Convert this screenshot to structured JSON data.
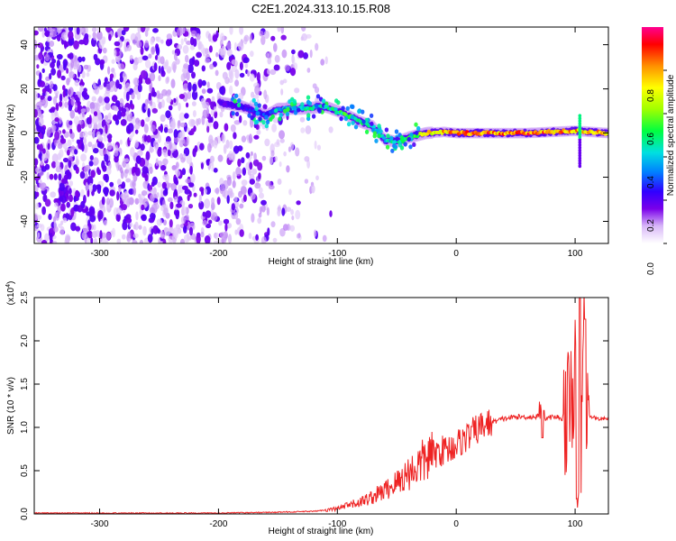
{
  "figure": {
    "title": "C2E1.2024.313.10.15.R08"
  },
  "chart_data": [
    {
      "type": "heatmap",
      "xlabel": "Height of straight line (km)",
      "ylabel": "Frequency (Hz)",
      "xlim": [
        -355,
        128
      ],
      "ylim": [
        -50,
        48
      ],
      "xticks": [
        -300,
        -200,
        -100,
        0,
        100
      ],
      "yticks": [
        -40,
        -20,
        0,
        20,
        40
      ],
      "colorbar": {
        "label": "Normalized spectral amplitude",
        "range": [
          0.0,
          1.0
        ],
        "ticks": [
          0.0,
          0.2,
          0.4,
          0.6,
          0.8
        ],
        "tick_labels": [
          "0.0",
          "0.2",
          "0.4",
          "0.6",
          "0.8"
        ],
        "colormap": [
          "#ffffff",
          "#d8b8f8",
          "#7a00ea",
          "#3000ff",
          "#0080ff",
          "#00e0e0",
          "#00ff40",
          "#a0ff00",
          "#ffff00",
          "#ff9000",
          "#ff0000",
          "#ff0090"
        ]
      },
      "description_of_content": {
        "noise_region_x": [
          -355,
          -115
        ],
        "noise_amplitude": [
          0.05,
          0.2
        ],
        "ridge": [
          {
            "x": -200,
            "y": 14,
            "amp": 0.2
          },
          {
            "x": -180,
            "y": 12,
            "amp": 0.25
          },
          {
            "x": -160,
            "y": 8,
            "amp": 0.3
          },
          {
            "x": -150,
            "y": 11,
            "amp": 0.4
          },
          {
            "x": -130,
            "y": 11,
            "amp": 0.5
          },
          {
            "x": -110,
            "y": 12,
            "amp": 0.5
          },
          {
            "x": -95,
            "y": 9,
            "amp": 0.55
          },
          {
            "x": -80,
            "y": 5,
            "amp": 0.55
          },
          {
            "x": -70,
            "y": 3,
            "amp": 0.5
          },
          {
            "x": -60,
            "y": -3,
            "amp": 0.45
          },
          {
            "x": -50,
            "y": -4,
            "amp": 0.5
          },
          {
            "x": -40,
            "y": -2,
            "amp": 0.6
          },
          {
            "x": -25,
            "y": 0,
            "amp": 0.75
          },
          {
            "x": -10,
            "y": 0.5,
            "amp": 0.85
          },
          {
            "x": 0,
            "y": 0,
            "amp": 0.9
          },
          {
            "x": 20,
            "y": 0,
            "amp": 0.92
          },
          {
            "x": 60,
            "y": 0,
            "amp": 0.92
          },
          {
            "x": 100,
            "y": 1,
            "amp": 0.85
          },
          {
            "x": 128,
            "y": 0,
            "amp": 0.9
          }
        ]
      }
    },
    {
      "type": "line",
      "xlabel": "Height of straight line (km)",
      "ylabel": "SNR (10 * v/v)",
      "exponent_label": "(x10",
      "exponent_power": "4",
      "exponent_close": ")",
      "xlim": [
        -355,
        128
      ],
      "ylim": [
        0,
        2.5
      ],
      "xticks": [
        -300,
        -200,
        -100,
        0,
        100
      ],
      "yticks": [
        0.0,
        0.5,
        1.0,
        1.5,
        2.0,
        2.5
      ],
      "ytick_labels": [
        "0.0",
        "0.5",
        "1.0",
        "1.5",
        "2.0",
        "2.5"
      ],
      "color": "#ee2222",
      "series": [
        {
          "x": [
            -355,
            -300,
            -200,
            -150,
            -120,
            -100,
            -90,
            -80,
            -70,
            -60,
            -50,
            -45,
            -40,
            -35,
            -30,
            -25,
            -20,
            -15,
            -10,
            -5,
            0,
            10,
            20,
            30,
            40,
            50,
            60,
            65,
            70,
            72,
            75,
            80,
            85,
            90,
            95,
            98,
            100,
            102,
            104,
            105,
            106,
            108,
            110,
            115,
            120,
            128
          ],
          "y": [
            0.01,
            0.01,
            0.01,
            0.02,
            0.03,
            0.06,
            0.1,
            0.14,
            0.2,
            0.27,
            0.36,
            0.42,
            0.48,
            0.52,
            0.58,
            0.64,
            0.68,
            0.72,
            0.74,
            0.76,
            0.8,
            0.9,
            1.0,
            1.06,
            1.1,
            1.12,
            1.12,
            1.12,
            1.13,
            1.3,
            1.1,
            1.12,
            1.12,
            1.1,
            1.2,
            1.5,
            1.6,
            1.0,
            2.5,
            0.3,
            1.8,
            2.2,
            1.13,
            1.12,
            1.1,
            1.1
          ]
        }
      ]
    }
  ]
}
